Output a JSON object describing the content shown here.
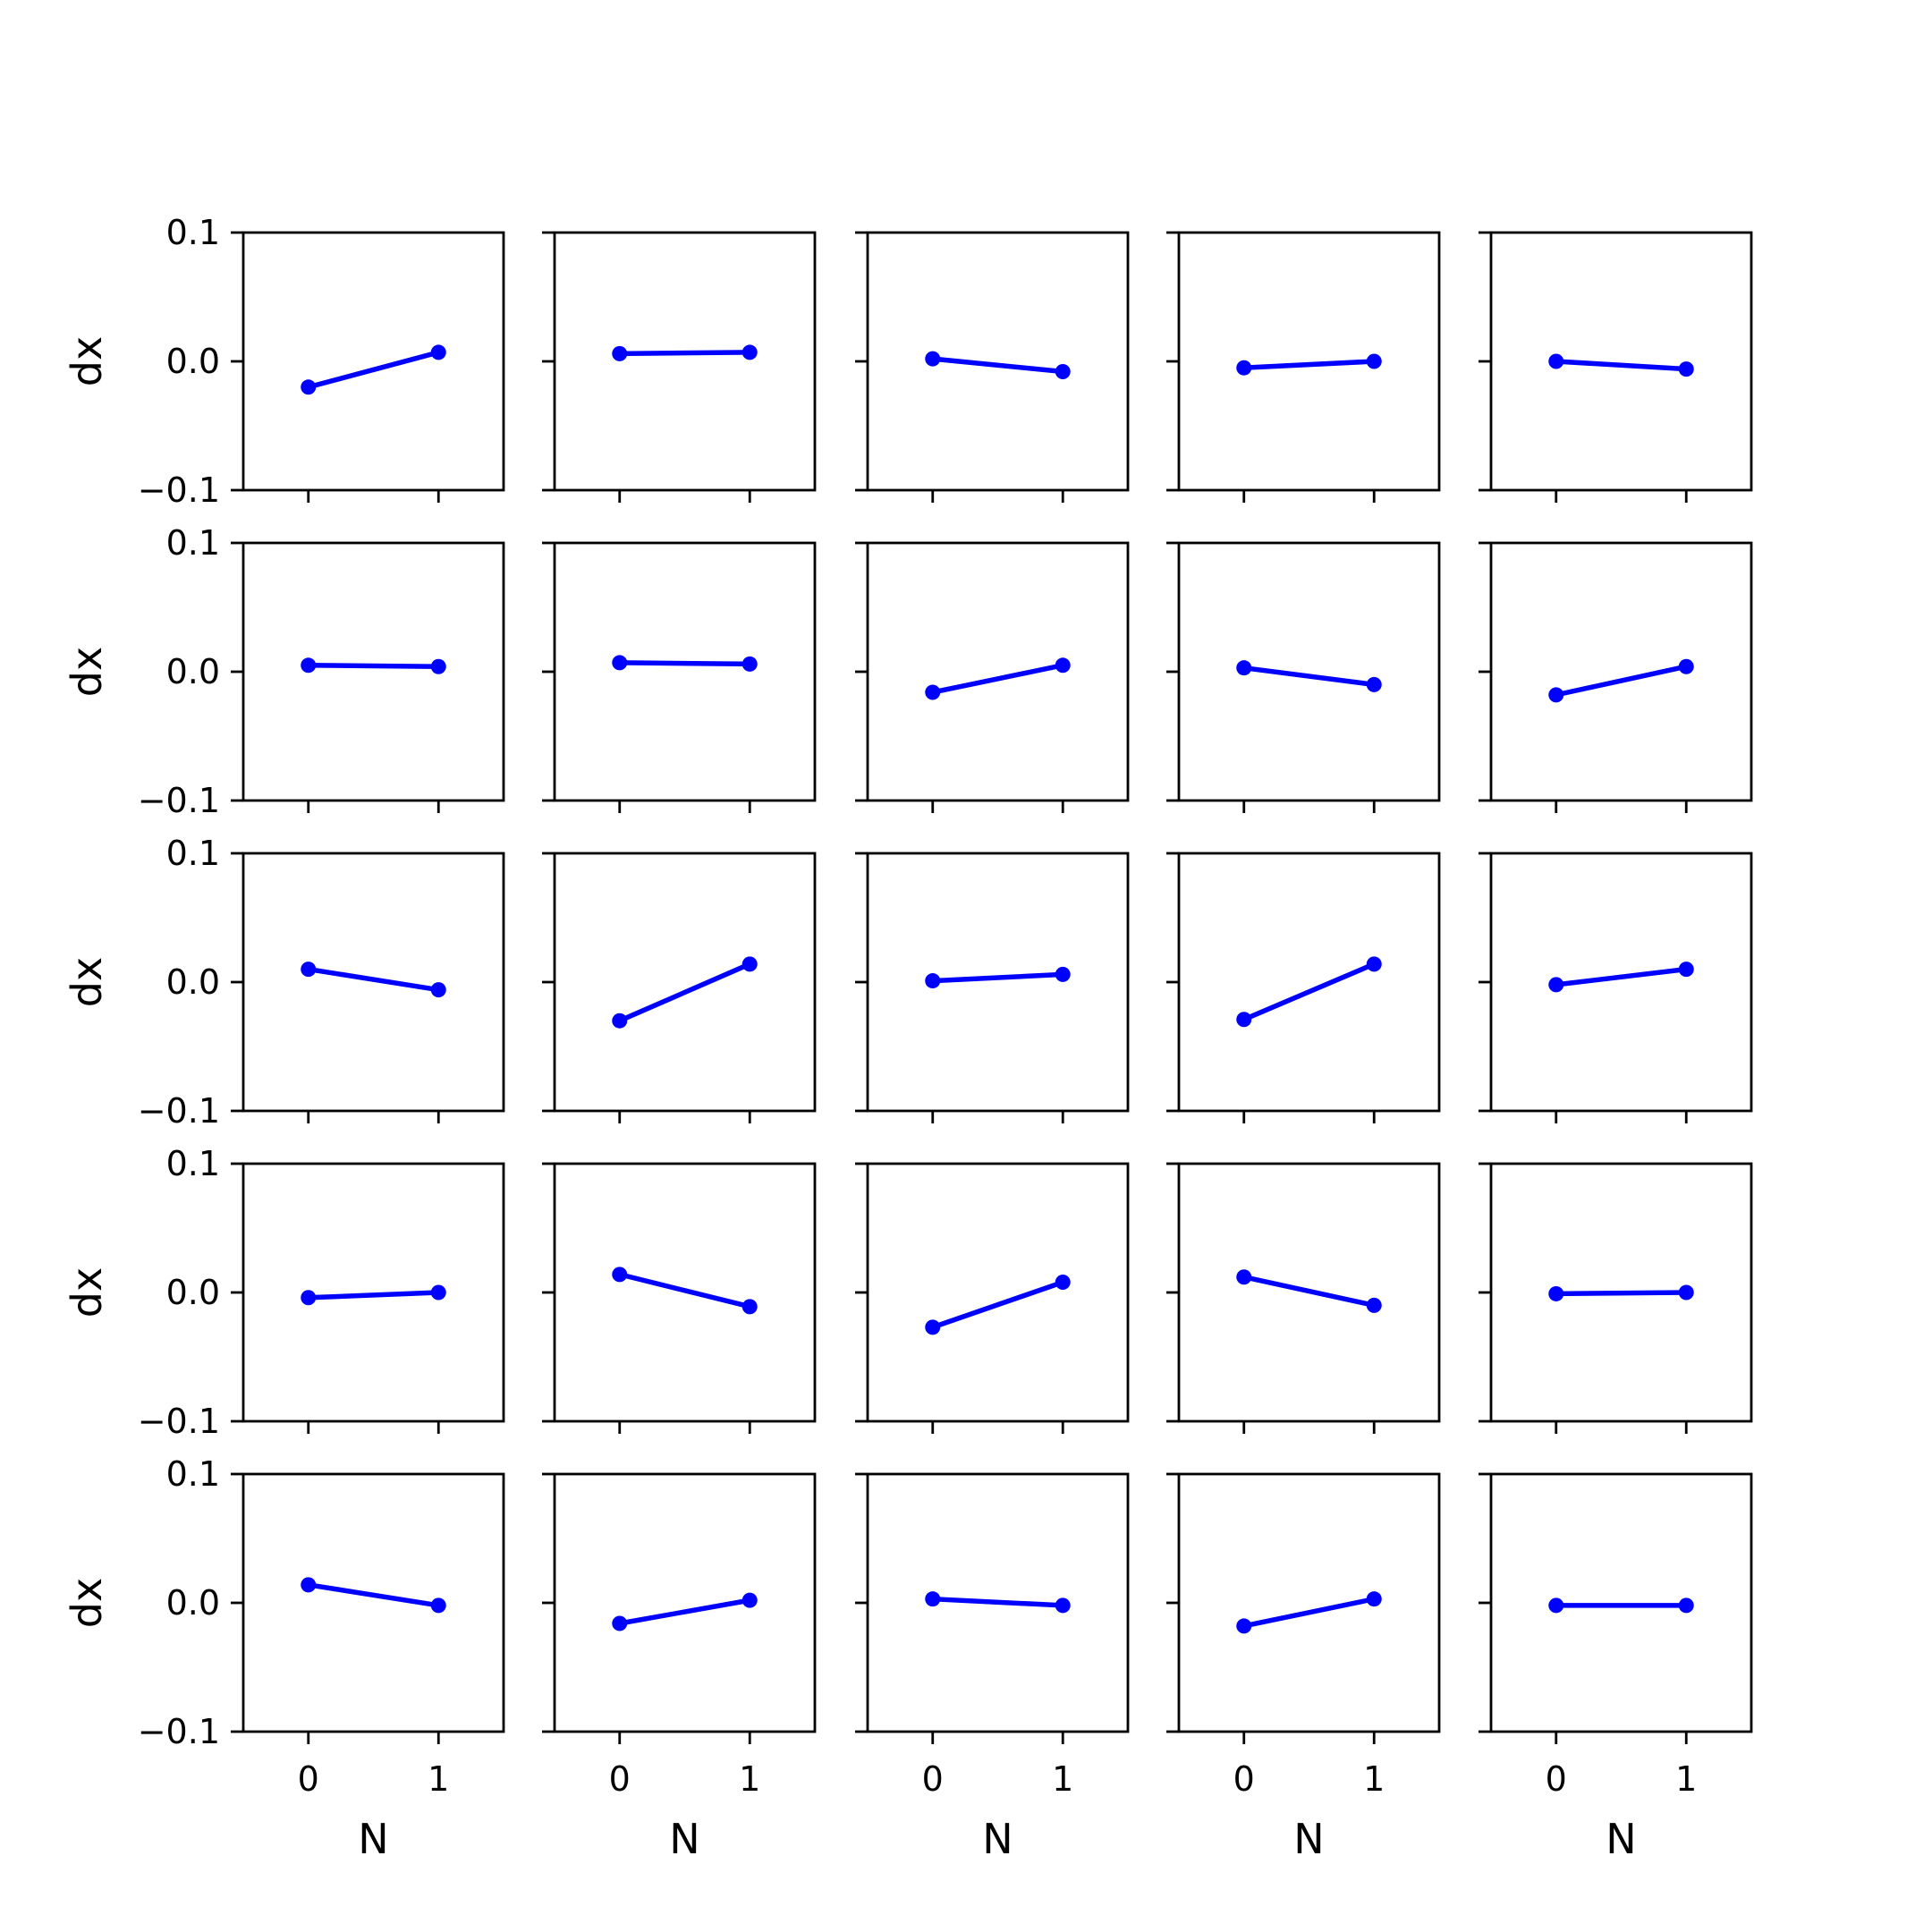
{
  "chart_data": {
    "type": "line",
    "layout": {
      "rows": 5,
      "cols": 5
    },
    "xlabel": "N",
    "ylabel": "dx",
    "x": [
      0,
      1
    ],
    "xlim": [
      -0.5,
      1.5
    ],
    "ylim": [
      -0.1,
      0.1
    ],
    "xticks": [
      0,
      1
    ],
    "yticks": [
      -0.1,
      0.0,
      0.1
    ],
    "xtick_labels": [
      "0",
      "1"
    ],
    "ytick_labels": [
      "−0.1",
      "0.0",
      "0.1"
    ],
    "grid": false,
    "color": "#0000ff",
    "panels": [
      [
        [
          -0.02,
          0.007
        ],
        [
          0.006,
          0.007
        ],
        [
          0.002,
          -0.008
        ],
        [
          -0.005,
          0.0
        ],
        [
          0.0,
          -0.006
        ]
      ],
      [
        [
          0.005,
          0.004
        ],
        [
          0.007,
          0.006
        ],
        [
          -0.016,
          0.005
        ],
        [
          0.003,
          -0.01
        ],
        [
          -0.018,
          0.004
        ]
      ],
      [
        [
          0.01,
          -0.006
        ],
        [
          -0.03,
          0.014
        ],
        [
          0.001,
          0.006
        ],
        [
          -0.029,
          0.014
        ],
        [
          -0.002,
          0.01
        ]
      ],
      [
        [
          -0.004,
          0.0
        ],
        [
          0.014,
          -0.011
        ],
        [
          -0.027,
          0.008
        ],
        [
          0.012,
          -0.01
        ],
        [
          -0.001,
          0.0
        ]
      ],
      [
        [
          0.014,
          -0.002
        ],
        [
          -0.016,
          0.002
        ],
        [
          0.003,
          -0.002
        ],
        [
          -0.018,
          0.003
        ],
        [
          -0.002,
          -0.002
        ]
      ]
    ]
  }
}
